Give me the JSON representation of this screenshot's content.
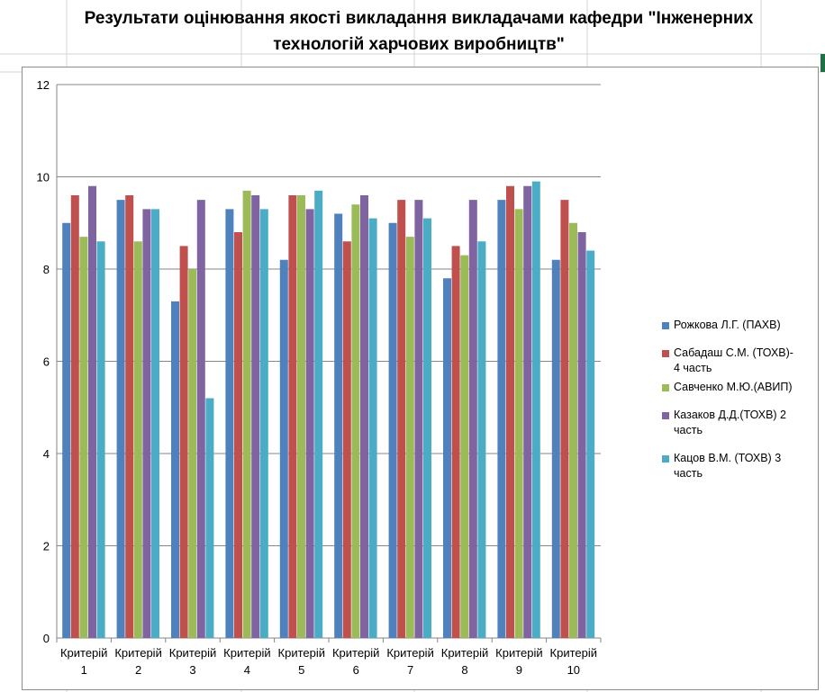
{
  "chart_data": {
    "type": "bar",
    "title": "Результати оцінювання якості викладання викладачами кафедри \"Інженерних технологій харчових виробництв\"",
    "title_lines": [
      "Результати оцінювання якості викладання викладачами кафедри \"Інженерних",
      "технологій харчових виробництв\""
    ],
    "categories": [
      "Критерій 1",
      "Критерій 2",
      "Критерій 3",
      "Критерій 4",
      "Критерій 5",
      "Критерій 6",
      "Критерій 7",
      "Критерій 8",
      "Критерій 9",
      "Критерій 10"
    ],
    "category_lines": [
      [
        "Критерій",
        "1"
      ],
      [
        "Критерій",
        "2"
      ],
      [
        "Критерій",
        "3"
      ],
      [
        "Критерій",
        "4"
      ],
      [
        "Критерій",
        "5"
      ],
      [
        "Критерій",
        "6"
      ],
      [
        "Критерій",
        "7"
      ],
      [
        "Критерій",
        "8"
      ],
      [
        "Критерій",
        "9"
      ],
      [
        "Критерій",
        "10"
      ]
    ],
    "series": [
      {
        "name": "Рожкова Л.Г. (ПАХВ)",
        "color": "#4f81bd",
        "legend_lines": [
          "Рожкова Л.Г. (ПАХВ)"
        ],
        "values": [
          9.0,
          9.5,
          7.3,
          9.3,
          8.2,
          9.2,
          9.0,
          7.8,
          9.5,
          8.2
        ]
      },
      {
        "name": "Сабадаш С.М. (ТОХВ)- 4 часть",
        "color": "#c0504d",
        "legend_lines": [
          "Сабадаш С.М. (ТОХВ)-",
          "4 часть"
        ],
        "values": [
          9.6,
          9.6,
          8.5,
          8.8,
          9.6,
          8.6,
          9.5,
          8.5,
          9.8,
          9.5
        ]
      },
      {
        "name": "Савченко М.Ю.(АВИП)",
        "color": "#9bbb59",
        "legend_lines": [
          "Савченко М.Ю.(АВИП)"
        ],
        "values": [
          8.7,
          8.6,
          8.0,
          9.7,
          9.6,
          9.4,
          8.7,
          8.3,
          9.3,
          9.0
        ]
      },
      {
        "name": "Казаков Д.Д.(ТОХВ) 2 часть",
        "color": "#8064a2",
        "legend_lines": [
          "Казаков Д.Д.(ТОХВ) 2",
          "часть"
        ],
        "values": [
          9.8,
          9.3,
          9.5,
          9.6,
          9.3,
          9.6,
          9.5,
          9.5,
          9.8,
          8.8
        ]
      },
      {
        "name": "Кацов В.М. (ТОХВ) 3 часть",
        "color": "#4bacc6",
        "legend_lines": [
          "Кацов В.М. (ТОХВ) 3",
          "часть"
        ],
        "values": [
          8.6,
          9.3,
          5.2,
          9.3,
          9.7,
          9.1,
          9.1,
          8.6,
          9.9,
          8.4
        ]
      }
    ],
    "ylim": [
      0,
      12
    ],
    "yticks": [
      0,
      2,
      4,
      6,
      8,
      10,
      12
    ],
    "grid": true,
    "legend_position": "right",
    "xlabel": "",
    "ylabel": ""
  }
}
